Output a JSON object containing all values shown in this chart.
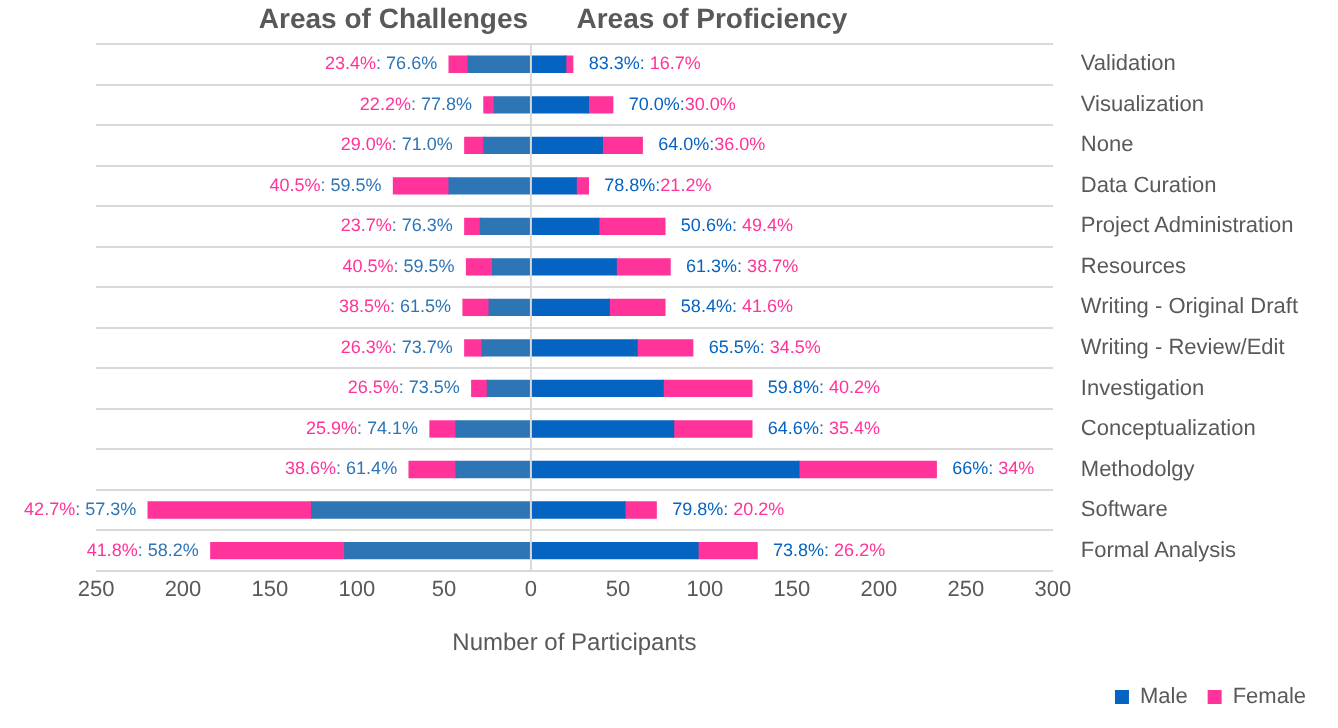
{
  "chart_data": {
    "type": "bar",
    "orientation": "horizontal",
    "stacked": true,
    "annotations": [
      "Areas of Challenges",
      "Areas of Proficiency",
      {
        "text": "23.4%: 76.6%",
        "x": -47,
        "y": "Validation"
      },
      {
        "text": "22.2%: 77.8%",
        "x": -27,
        "y": "Visualization"
      },
      {
        "text": "29.0%: 71.0%",
        "x": -38,
        "y": "None"
      },
      {
        "text": "40.5%: 59.5%",
        "x": -79,
        "y": "Data Curation"
      },
      {
        "text": "23.7%: 76.3%",
        "x": -38,
        "y": "Project Administration"
      },
      {
        "text": "40.5%: 59.5%",
        "x": -37,
        "y": "Resources"
      },
      {
        "text": "38.5%: 61.5%",
        "x": -39,
        "y": "Writing - Original Draft"
      },
      {
        "text": "26.3%: 73.7%",
        "x": -38,
        "y": "Writing - Review/Edit"
      },
      {
        "text": "26.5%: 73.5%",
        "x": -34,
        "y": "Investigation"
      },
      {
        "text": "25.9%: 74.1%",
        "x": -58,
        "y": "Conceptualization"
      },
      {
        "text": "38.6%: 61.4%",
        "x": -70,
        "y": "Methodolgy"
      },
      {
        "text": "42.7%: 57.3%",
        "x": -220,
        "y": "Software"
      },
      {
        "text": "41.8%: 58.2%",
        "x": -184,
        "y": "Formal Analysis"
      },
      {
        "text": "83.3%: 16.7%",
        "x": 24,
        "y": "Validation"
      },
      {
        "text": "70.0%:30.0%",
        "x": 47,
        "y": "Visualization"
      },
      {
        "text": "64.0%:36.0%",
        "x": 64,
        "y": "None"
      },
      {
        "text": "78.8%:21.2%",
        "x": 33,
        "y": "Data Curation"
      },
      {
        "text": "50.6%: 49.4%",
        "x": 77,
        "y": "Project Administration"
      },
      {
        "text": "61.3%: 38.7%",
        "x": 80,
        "y": "Resources"
      },
      {
        "text": "58.4%: 41.6%",
        "x": 77,
        "y": "Writing - Original Draft"
      },
      {
        "text": "65.5%: 34.5%",
        "x": 93,
        "y": "Writing - Review/Edit"
      },
      {
        "text": "59.8%: 40.2%",
        "x": 127,
        "y": "Investigation"
      },
      {
        "text": "64.6%: 35.4%",
        "x": 127,
        "y": "Conceptualization"
      },
      {
        "text": "66%: 34%",
        "x": 233,
        "y": "Methodolgy"
      },
      {
        "text": "79.8%: 20.2%",
        "x": 72,
        "y": "Software"
      },
      {
        "text": "73.8%: 26.2%",
        "x": 130,
        "y": "Formal Analysis"
      }
    ],
    "xlabel": "Number of Participants",
    "categories": [
      "Validation",
      "Visualization",
      "None",
      "Data Curation",
      "Project Administration",
      "Resources",
      "Writing - Original Draft",
      "Writing - Review/Edit",
      "Investigation",
      "Conceptualization",
      "Methodolgy",
      "Software",
      "Formal Analysis"
    ],
    "series": [
      {
        "color": "#2e75b6",
        "values": [
          -36,
          -21,
          -27,
          -47,
          -29,
          -22,
          -24,
          -28,
          -25,
          -43,
          -43,
          -126,
          -107
        ]
      },
      {
        "color": "#ff3399",
        "values": [
          -11,
          -6,
          -11,
          -32,
          -9,
          -15,
          -15,
          -10,
          -9,
          -15,
          -27,
          -94,
          -77
        ]
      },
      {
        "name": "Male",
        "color": "#0563c1",
        "values": [
          20,
          33,
          41,
          26,
          39,
          49,
          45,
          61,
          76,
          82,
          154,
          54,
          96
        ]
      },
      {
        "name": "Female",
        "color": "#ff3399",
        "values": [
          4,
          14,
          23,
          7,
          38,
          31,
          32,
          32,
          51,
          45,
          79,
          18,
          34
        ]
      }
    ],
    "xlim": [
      -250,
      300
    ],
    "xticks": [
      {
        "value": -250,
        "label": "250"
      },
      {
        "value": -200,
        "label": "200"
      },
      {
        "value": -150,
        "label": "150"
      },
      {
        "value": -100,
        "label": "100"
      },
      {
        "value": -50,
        "label": "50"
      },
      0,
      50,
      100,
      150,
      200,
      250,
      300
    ],
    "ref_lines": [
      {
        "axis": "x",
        "value": 0,
        "color": "#d9d9d9"
      }
    ],
    "grid": "y",
    "legend": "bottom right"
  }
}
